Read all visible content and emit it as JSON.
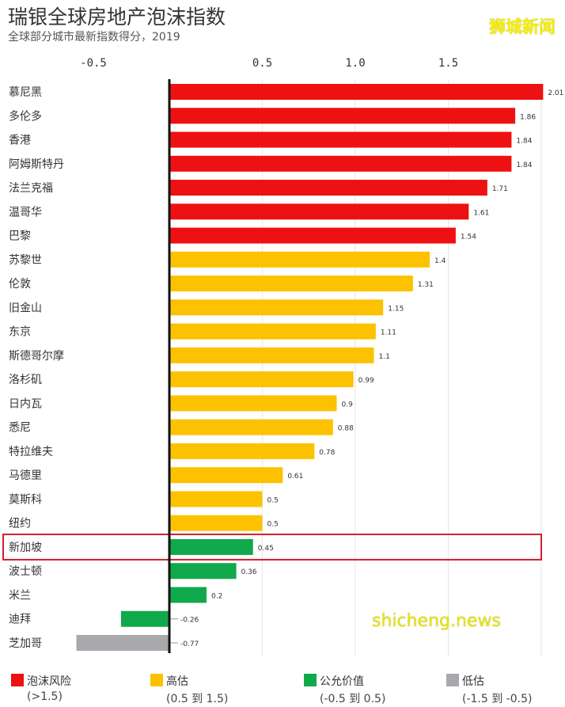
{
  "header": {
    "title": "瑞银全球房地产泡沫指数",
    "subtitle": "全球部分城市最新指数得分，2019",
    "logo": "狮城新闻",
    "watermark": "shicheng.news"
  },
  "chart_data": {
    "type": "bar",
    "orientation": "horizontal",
    "title": "瑞银全球房地产泡沫指数",
    "subtitle": "全球部分城市最新指数得分，2019",
    "xlim": [
      -0.5,
      2.0
    ],
    "xticks": [
      {
        "v": -0.5,
        "label": "-0.5"
      },
      {
        "v": 0.5,
        "label": "0.5"
      },
      {
        "v": 1.0,
        "label": "1.0"
      },
      {
        "v": 1.5,
        "label": "1.5"
      }
    ],
    "grid": true,
    "categories": [
      "慕尼黑",
      "多伦多",
      "香港",
      "阿姆斯特丹",
      "法兰克福",
      "温哥华",
      "巴黎",
      "苏黎世",
      "伦敦",
      "旧金山",
      "东京",
      "斯德哥尔摩",
      "洛杉矶",
      "日内瓦",
      "悉尼",
      "特拉维夫",
      "马德里",
      "莫斯科",
      "纽约",
      "新加坡",
      "波士顿",
      "米兰",
      "迪拜",
      "芝加哥"
    ],
    "values": [
      2.01,
      1.86,
      1.84,
      1.84,
      1.71,
      1.61,
      1.54,
      1.4,
      1.31,
      1.15,
      1.11,
      1.1,
      0.99,
      0.9,
      0.88,
      0.78,
      0.61,
      0.5,
      0.5,
      0.45,
      0.36,
      0.2,
      -0.26,
      -0.77
    ],
    "value_labels": [
      "2.01",
      "1.86",
      "1.84",
      "1.84",
      "1.71",
      "1.61",
      "1.54",
      "1.4",
      "1.31",
      "1.15",
      "1.11",
      "1.1",
      "0.99",
      "0.9",
      "0.88",
      "0.78",
      "0.61",
      "0.5",
      "0.5",
      "0.45",
      "0.36",
      "0.2",
      "-0.26",
      "-0.77"
    ],
    "highlight": "新加坡",
    "highlight_color": "#d0202a",
    "colors": {
      "bubble": "#ee1111",
      "over": "#fcc200",
      "fair": "#10a94c",
      "under": "#a8a8ad"
    },
    "legend": [
      {
        "key": "bubble",
        "label": "泡沫风险",
        "range": "(>1.5)"
      },
      {
        "key": "over",
        "label": "高估",
        "range": "(0.5 到 1.5)"
      },
      {
        "key": "fair",
        "label": "公允价值",
        "range": "(-0.5 到 0.5)"
      },
      {
        "key": "under",
        "label": "低估",
        "range": "(-1.5 到 -0.5)"
      }
    ],
    "legend_placement": "bottom"
  }
}
